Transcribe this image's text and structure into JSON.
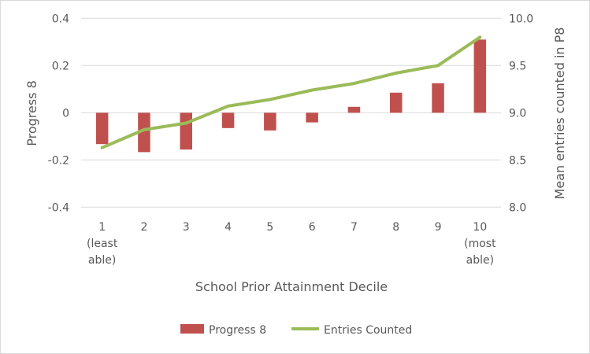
{
  "chart_data": {
    "type": "bar",
    "title": "",
    "xlabel": "School Prior Attainment Decile",
    "ylabel": "Progress 8",
    "y2label": "Mean entries counted in P8",
    "categories": [
      [
        "1",
        "(least",
        "able)"
      ],
      [
        "2"
      ],
      [
        "3"
      ],
      [
        "4"
      ],
      [
        "5"
      ],
      [
        "6"
      ],
      [
        "7"
      ],
      [
        "8"
      ],
      [
        "9"
      ],
      [
        "10",
        "(most",
        "able)"
      ]
    ],
    "ylim": [
      -0.4,
      0.4
    ],
    "yticks": [
      "0.4",
      "0.2",
      "0",
      "-0.2",
      "-0.4"
    ],
    "y2lim": [
      8.0,
      10.0
    ],
    "y2ticks": [
      "10.0",
      "9.5",
      "9.0",
      "8.5",
      "8.0"
    ],
    "grid": true,
    "legend_position": "bottom",
    "series": [
      {
        "name": "Progress 8",
        "type": "bar",
        "axis": "left",
        "color": "#c0504d",
        "values": [
          -0.133,
          -0.167,
          -0.156,
          -0.065,
          -0.075,
          -0.041,
          0.025,
          0.085,
          0.125,
          0.31
        ]
      },
      {
        "name": "Entries Counted",
        "type": "line",
        "axis": "right",
        "color": "#9bbb59",
        "values": [
          8.63,
          8.82,
          8.89,
          9.07,
          9.14,
          9.24,
          9.31,
          9.42,
          9.5,
          9.8
        ]
      }
    ]
  }
}
